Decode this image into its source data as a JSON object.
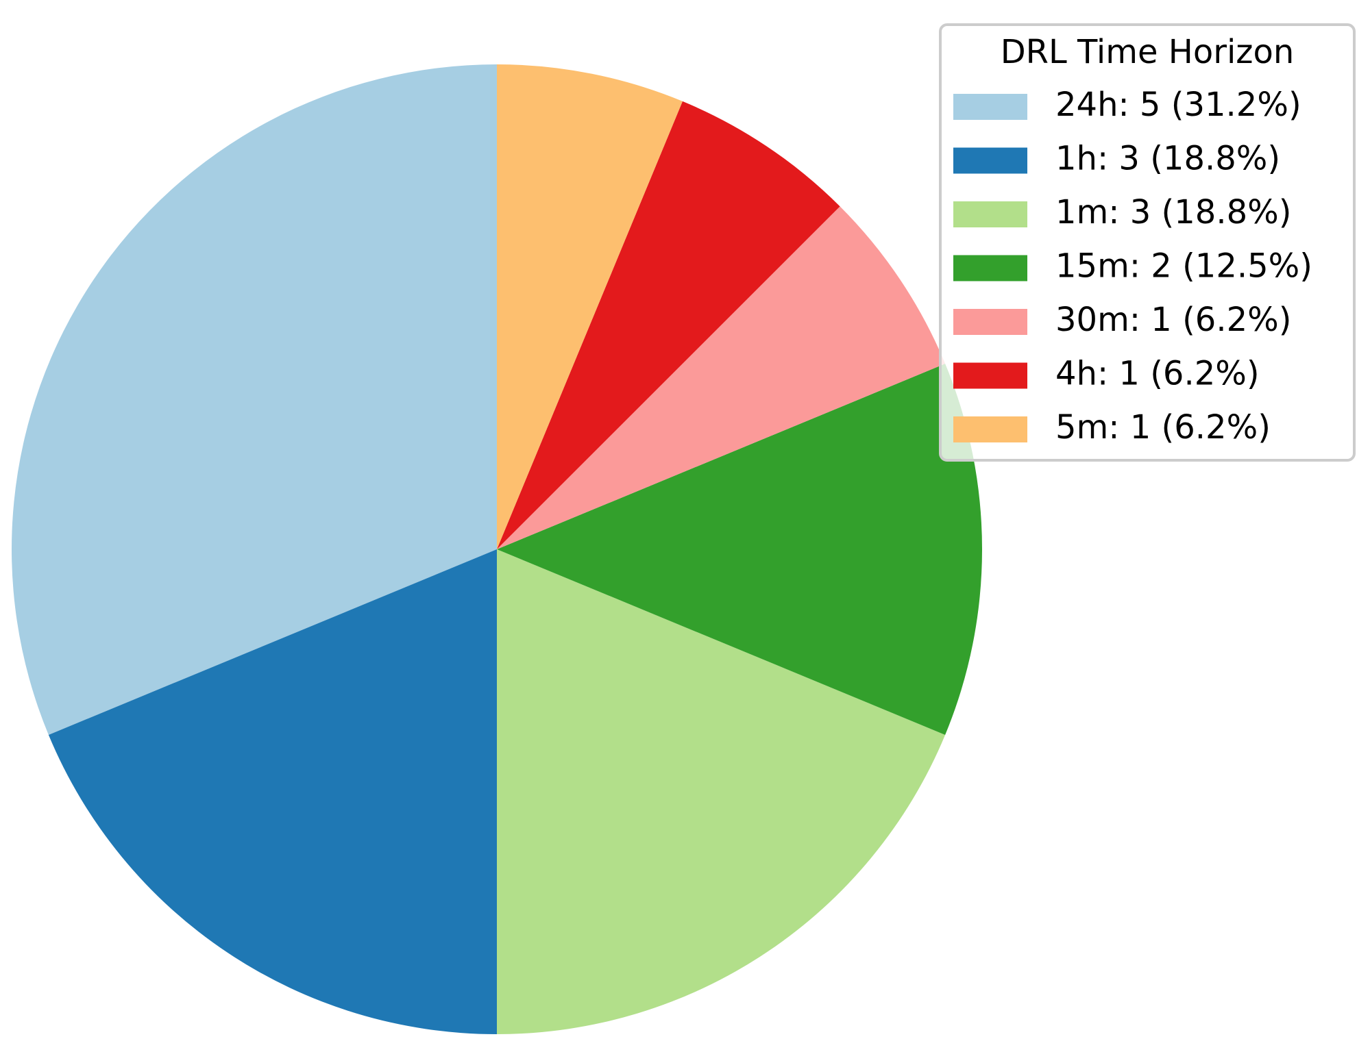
{
  "chart_data": {
    "type": "pie",
    "legend_title": "DRL Time Horizon",
    "categories": [
      "24h: 5 (31.2%)",
      "1h: 3 (18.8%)",
      "1m: 3 (18.8%)",
      "15m: 2 (12.5%)",
      "30m: 1 (6.2%)",
      "4h: 1 (6.2%)",
      "5m: 1 (6.2%)"
    ],
    "values": [
      5,
      3,
      3,
      2,
      1,
      1,
      1
    ],
    "colors": [
      "#a6cee3",
      "#1f78b4",
      "#b2df8a",
      "#33a02c",
      "#fb9a99",
      "#e31a1c",
      "#fdbf6f"
    ],
    "legend": "upper right"
  }
}
